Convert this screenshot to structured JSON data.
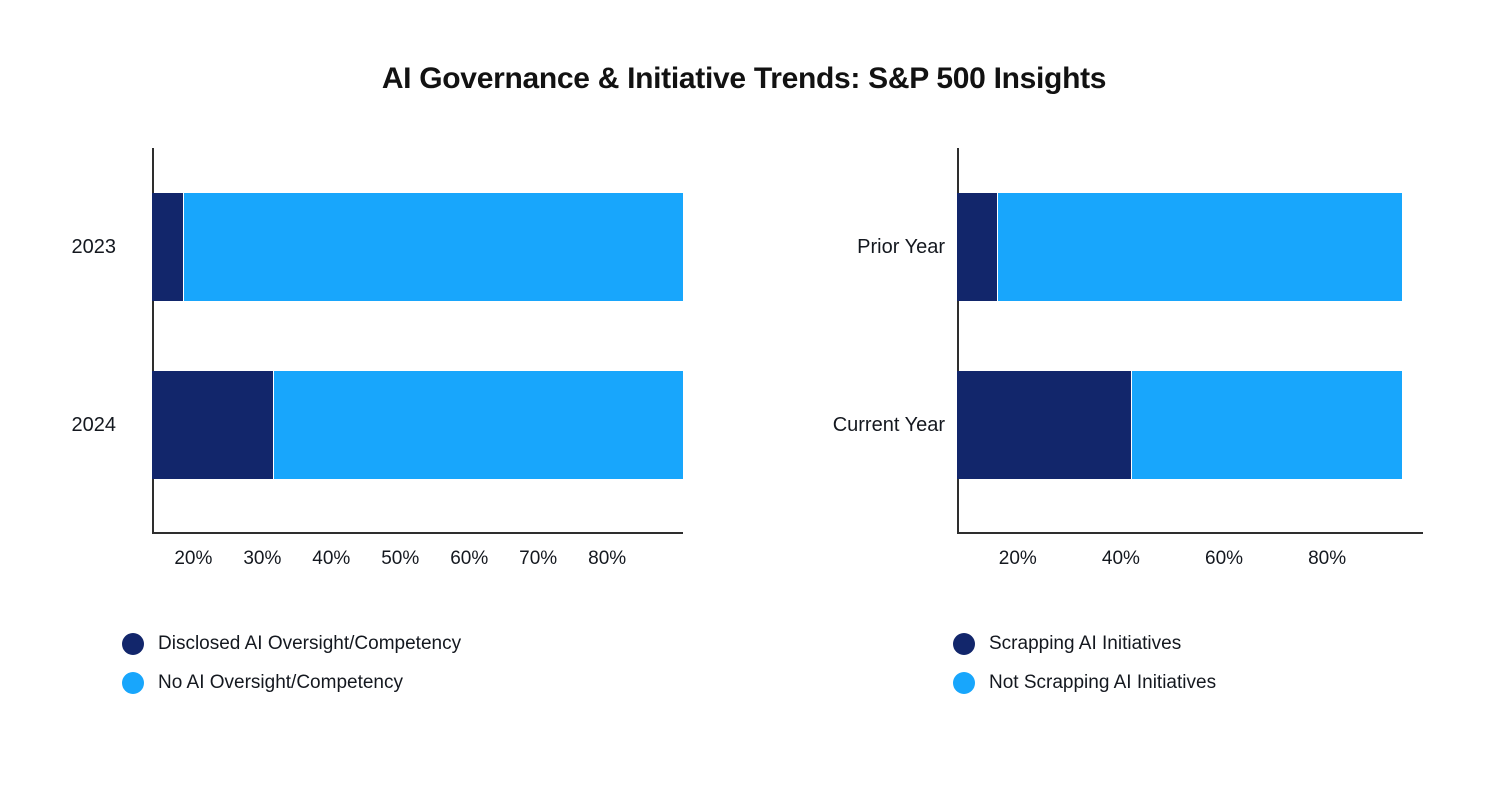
{
  "title": "AI Governance & Initiative Trends: S&P 500 Insights",
  "colors": {
    "navy": "#12266b",
    "sky": "#18a6fc",
    "axis_line": "#2e2e2e",
    "text": "#14181f",
    "background": "#ffffff"
  },
  "chart_data": [
    {
      "type": "bar",
      "orientation": "horizontal",
      "stacked": true,
      "title": "",
      "categories": [
        "2023",
        "2024"
      ],
      "series": [
        {
          "name": "Disclosed AI Oversight/Competency",
          "color": "#12266b",
          "values": [
            18.5,
            31.6
          ]
        },
        {
          "name": "No AI Oversight/Competency",
          "color": "#18a6fc",
          "values": [
            81.5,
            68.4
          ]
        }
      ],
      "xticks": [
        20,
        30,
        40,
        50,
        60,
        70,
        80
      ],
      "xtick_labels": [
        "20%",
        "30%",
        "40%",
        "50%",
        "60%",
        "70%",
        "80%"
      ],
      "xlim": [
        14,
        91
      ],
      "unit": "percent",
      "grid": false,
      "legend_position": "bottom-left",
      "note": "100% stacked bars clipped to the visible x-axis window"
    },
    {
      "type": "bar",
      "orientation": "horizontal",
      "stacked": true,
      "title": "",
      "categories": [
        "Prior Year",
        "Current Year"
      ],
      "series": [
        {
          "name": "Scrapping AI Initiatives",
          "color": "#12266b",
          "values": [
            16,
            42
          ]
        },
        {
          "name": "Not Scrapping AI Initiatives",
          "color": "#18a6fc",
          "values": [
            78.5,
            52.5
          ]
        }
      ],
      "xticks": [
        20,
        40,
        60,
        80
      ],
      "xtick_labels": [
        "20%",
        "40%",
        "60%",
        "80%"
      ],
      "xlim": [
        8.2,
        98.6
      ],
      "unit": "percent",
      "grid": false,
      "legend_position": "bottom-left",
      "note": "stack totals reach ~94.5% inside the visible x-axis window"
    }
  ]
}
